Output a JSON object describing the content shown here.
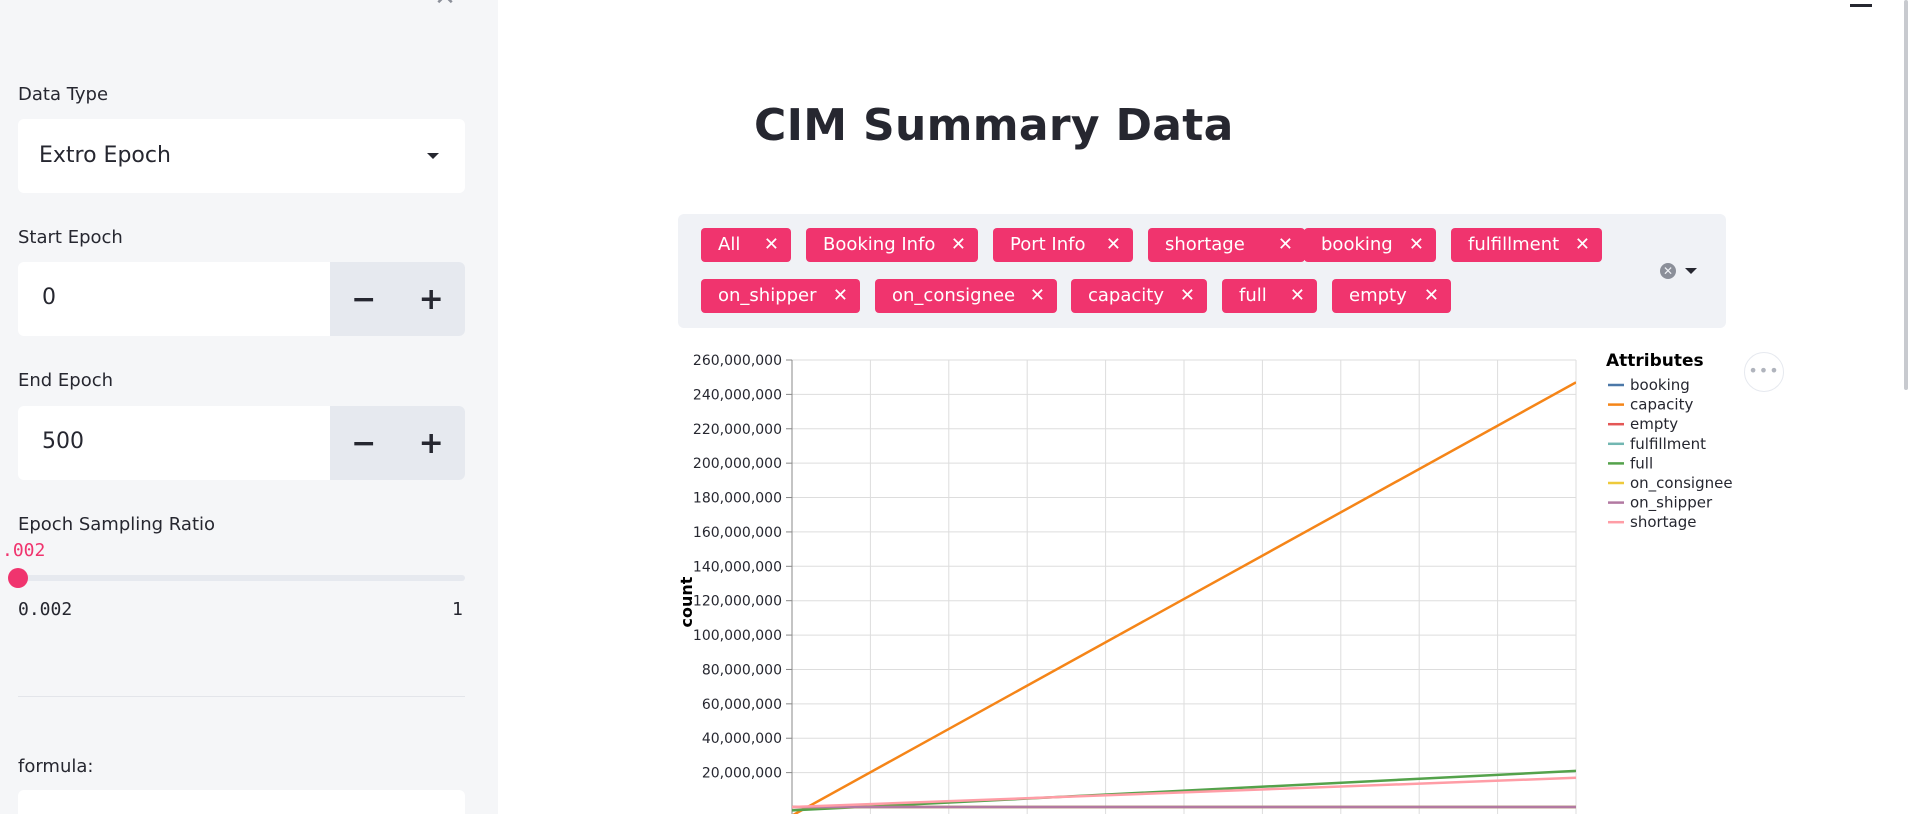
{
  "sidebar": {
    "data_type": {
      "label": "Data Type",
      "value": "Extro Epoch"
    },
    "start_epoch": {
      "label": "Start Epoch",
      "value": "0",
      "minus": "−",
      "plus": "+"
    },
    "end_epoch": {
      "label": "End Epoch",
      "value": "500",
      "minus": "−",
      "plus": "+"
    },
    "sampling": {
      "label": "Epoch Sampling Ratio",
      "current": ".002",
      "min": "0.002",
      "max": "1",
      "value": 0.002
    },
    "formula": {
      "label": "formula:"
    }
  },
  "main": {
    "title": "CIM Summary Data",
    "tags": [
      "All",
      "Booking Info",
      "Port Info",
      "shortage",
      "booking",
      "fulfillment",
      "on_shipper",
      "on_consignee",
      "capacity",
      "full",
      "empty"
    ],
    "tag_remove_glyph": "✕"
  },
  "chart_data": {
    "type": "line",
    "ylabel": "count",
    "xlabel": "",
    "y_ticks": [
      "20,000,000",
      "40,000,000",
      "60,000,000",
      "80,000,000",
      "100,000,000",
      "120,000,000",
      "140,000,000",
      "160,000,000",
      "180,000,000",
      "200,000,000",
      "220,000,000",
      "240,000,000",
      "260,000,000"
    ],
    "ylim": [
      0,
      260000000
    ],
    "xlim": [
      0,
      500
    ],
    "grid": true,
    "legend": {
      "title": "Attributes",
      "placement": "right"
    },
    "series": [
      {
        "name": "booking",
        "color": "#4c78a8",
        "x": [
          0,
          500
        ],
        "y": [
          0,
          0
        ]
      },
      {
        "name": "capacity",
        "color": "#f58518",
        "x": [
          0,
          500
        ],
        "y": [
          -5000000,
          247000000
        ]
      },
      {
        "name": "empty",
        "color": "#e45756",
        "x": [
          0,
          500
        ],
        "y": [
          0,
          0
        ]
      },
      {
        "name": "fulfillment",
        "color": "#72b7b2",
        "x": [
          0,
          500
        ],
        "y": [
          0,
          0
        ]
      },
      {
        "name": "full",
        "color": "#54a24b",
        "x": [
          0,
          500
        ],
        "y": [
          -2000000,
          21000000
        ]
      },
      {
        "name": "on_consignee",
        "color": "#eeca3b",
        "x": [
          0,
          500
        ],
        "y": [
          0,
          0
        ]
      },
      {
        "name": "on_shipper",
        "color": "#b279a2",
        "x": [
          0,
          500
        ],
        "y": [
          0,
          0
        ]
      },
      {
        "name": "shortage",
        "color": "#ff9da6",
        "x": [
          0,
          500
        ],
        "y": [
          0,
          17000000
        ]
      }
    ]
  }
}
